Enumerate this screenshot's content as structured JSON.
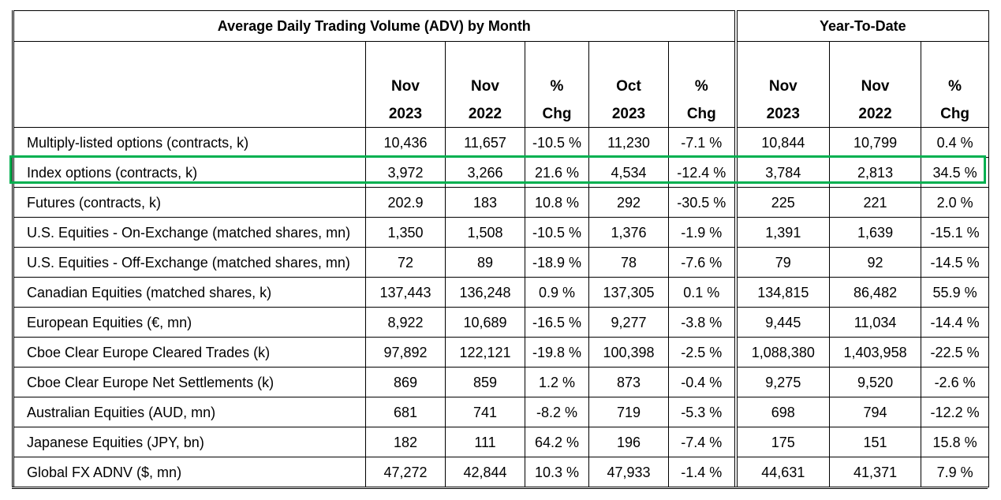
{
  "headers": {
    "adv_title": "Average Daily Trading Volume (ADV) by Month",
    "ytd_title": "Year-To-Date",
    "columns": [
      {
        "l1": "Nov",
        "l2": "2023"
      },
      {
        "l1": "Nov",
        "l2": "2022"
      },
      {
        "l1": "%",
        "l2": "Chg"
      },
      {
        "l1": "Oct",
        "l2": "2023"
      },
      {
        "l1": "%",
        "l2": "Chg"
      },
      {
        "l1": "Nov",
        "l2": "2023"
      },
      {
        "l1": "Nov",
        "l2": "2022"
      },
      {
        "l1": "%",
        "l2": "Chg"
      }
    ]
  },
  "rows": [
    {
      "label": "Multiply-listed options (contracts, k)",
      "v": [
        "10,436",
        "11,657",
        "-10.5 %",
        "11,230",
        "-7.1 %",
        "10,844",
        "10,799",
        "0.4 %"
      ]
    },
    {
      "label": "Index options (contracts, k)",
      "v": [
        "3,972",
        "3,266",
        "21.6 %",
        "4,534",
        "-12.4 %",
        "3,784",
        "2,813",
        "34.5 %"
      ]
    },
    {
      "label": "Futures (contracts, k)",
      "v": [
        "202.9",
        "183",
        "10.8 %",
        "292",
        "-30.5 %",
        "225",
        "221",
        "2.0 %"
      ]
    },
    {
      "label": "U.S. Equities - On-Exchange (matched shares, mn)",
      "v": [
        "1,350",
        "1,508",
        "-10.5 %",
        "1,376",
        "-1.9 %",
        "1,391",
        "1,639",
        "-15.1 %"
      ]
    },
    {
      "label": "U.S. Equities - Off-Exchange (matched shares, mn)",
      "v": [
        "72",
        "89",
        "-18.9 %",
        "78",
        "-7.6 %",
        "79",
        "92",
        "-14.5 %"
      ]
    },
    {
      "label": "Canadian Equities (matched shares, k)",
      "v": [
        "137,443",
        "136,248",
        "0.9 %",
        "137,305",
        "0.1 %",
        "134,815",
        "86,482",
        "55.9 %"
      ]
    },
    {
      "label": "European Equities (€, mn)",
      "v": [
        "8,922",
        "10,689",
        "-16.5 %",
        "9,277",
        "-3.8 %",
        "9,445",
        "11,034",
        "-14.4 %"
      ]
    },
    {
      "label": "Cboe Clear Europe Cleared Trades (k)",
      "v": [
        "97,892",
        "122,121",
        "-19.8 %",
        "100,398",
        "-2.5 %",
        "1,088,380",
        "1,403,958",
        "-22.5 %"
      ]
    },
    {
      "label": "Cboe Clear Europe Net Settlements (k)",
      "v": [
        "869",
        "859",
        "1.2 %",
        "873",
        "-0.4 %",
        "9,275",
        "9,520",
        "-2.6 %"
      ]
    },
    {
      "label": "Australian Equities (AUD, mn)",
      "v": [
        "681",
        "741",
        "-8.2 %",
        "719",
        "-5.3 %",
        "698",
        "794",
        "-12.2 %"
      ]
    },
    {
      "label": "Japanese Equities (JPY, bn)",
      "v": [
        "182",
        "111",
        "64.2 %",
        "196",
        "-7.4 %",
        "175",
        "151",
        "15.8 %"
      ]
    },
    {
      "label": "Global FX ADNV ($, mn)",
      "v": [
        "47,272",
        "42,844",
        "10.3 %",
        "47,933",
        "-1.4 %",
        "44,631",
        "41,371",
        "7.9 %"
      ]
    }
  ],
  "highlight": {
    "row": "Index options (contracts, k)",
    "color": "#00b050"
  }
}
